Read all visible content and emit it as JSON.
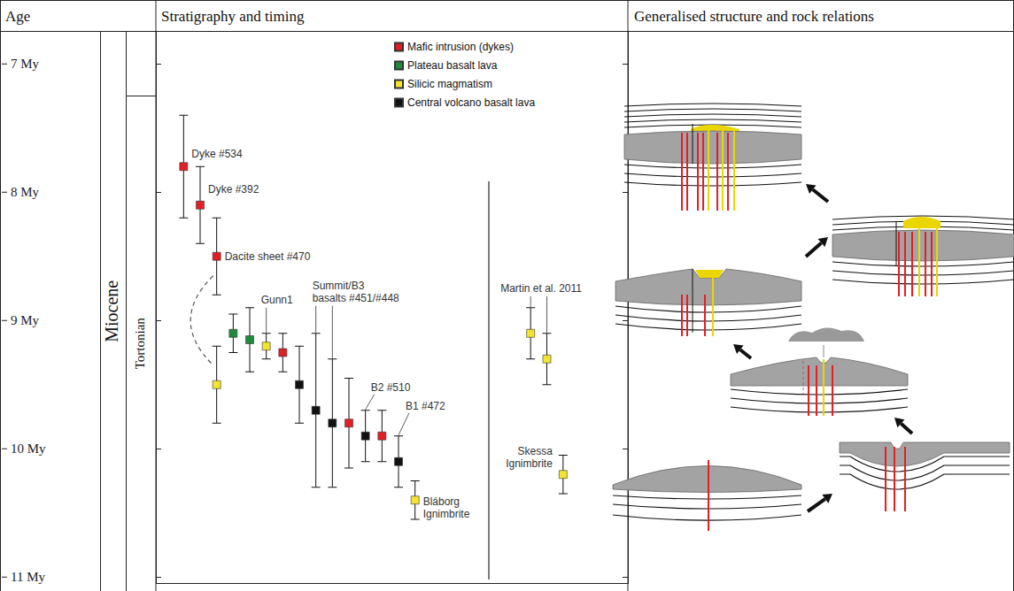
{
  "headers": {
    "age": "Age",
    "stratigraphy": "Stratigraphy and timing",
    "structure": "Generalised structure and rock relations"
  },
  "timescale": {
    "epoch": "Miocene",
    "stage": "Tortonian",
    "stage_top": 7.25
  },
  "chart_data": [
    {
      "type": "scatter",
      "ylim": [
        6.75,
        11.05
      ],
      "yticks": [
        {
          "value": 7,
          "label": "7 My"
        },
        {
          "value": 8,
          "label": "8 My"
        },
        {
          "value": 9,
          "label": "9 My"
        },
        {
          "value": 10,
          "label": "10 My"
        },
        {
          "value": 11,
          "label": "11 My"
        }
      ],
      "tick_labels": "y",
      "grid": false,
      "legend": "upper right",
      "categories": [
        null,
        null,
        null,
        null,
        null,
        null,
        null,
        null,
        null,
        null,
        null,
        null,
        null,
        null,
        null
      ],
      "series": [
        {
          "name": "Mafic intrusion (dykes)",
          "color": "#e31e24",
          "marker": "square",
          "values": [
            7.8,
            8.1,
            8.5,
            null,
            null,
            null,
            9.25,
            null,
            null,
            null,
            9.8,
            null,
            9.9,
            null,
            null
          ],
          "errors": [
            0.4,
            0.3,
            0.3,
            null,
            null,
            null,
            0.15,
            null,
            null,
            null,
            0.35,
            null,
            0.2,
            null,
            null
          ],
          "labels": [
            "Dyke #534",
            "Dyke #392",
            "Dacite sheet #470",
            null,
            null,
            null,
            null,
            null,
            null,
            null,
            null,
            null,
            null,
            null,
            null
          ]
        },
        {
          "name": "Plateau basalt lava",
          "color": "#1f8a3b",
          "marker": "square",
          "values": [
            null,
            null,
            null,
            9.1,
            9.15,
            null,
            null,
            null,
            null,
            null,
            null,
            null,
            null,
            null,
            null
          ],
          "errors": [
            null,
            null,
            null,
            0.15,
            0.25,
            null,
            null,
            null,
            null,
            null,
            null,
            null,
            null,
            null,
            null
          ],
          "labels": [
            null,
            null,
            null,
            null,
            null,
            null,
            null,
            null,
            null,
            null,
            null,
            null,
            null,
            null,
            null
          ]
        },
        {
          "name": "Silicic magmatism",
          "color": "#f5e42f",
          "marker": "square",
          "values": [
            null,
            null,
            9.5,
            null,
            null,
            9.2,
            null,
            null,
            null,
            null,
            null,
            null,
            null,
            null,
            10.4
          ],
          "errors": [
            null,
            null,
            0.3,
            null,
            null,
            0.1,
            null,
            null,
            null,
            null,
            null,
            null,
            null,
            null,
            0.15
          ],
          "labels": [
            null,
            null,
            null,
            null,
            null,
            "Gunn1",
            null,
            null,
            null,
            null,
            null,
            null,
            null,
            null,
            "Bláborg\nIgnimbrite"
          ]
        },
        {
          "name": "Central volcano basalt lava",
          "color": "#111111",
          "marker": "square",
          "values": [
            null,
            null,
            null,
            null,
            null,
            null,
            null,
            9.5,
            9.7,
            9.8,
            null,
            9.9,
            null,
            10.1,
            null
          ],
          "errors": [
            null,
            null,
            null,
            null,
            null,
            null,
            null,
            0.3,
            0.6,
            0.5,
            null,
            0.2,
            null,
            0.2,
            null
          ],
          "labels": [
            null,
            null,
            null,
            null,
            null,
            null,
            null,
            null,
            "Summit/B3\nbasalts #451/#448",
            "Summit/B3\nbasalts #451/#448",
            null,
            "B2 #510",
            null,
            "B1 #472",
            null
          ]
        }
      ],
      "connections": [
        {
          "from": [
            "Mafic intrusion (dykes)",
            2
          ],
          "to": [
            "Silicic magmatism",
            2
          ],
          "line_style": "dashed"
        }
      ]
    },
    {
      "type": "scatter",
      "ylim": [
        6.75,
        11.05
      ],
      "yticks": [
        {
          "value": 7,
          "label": "7 My"
        },
        {
          "value": 8,
          "label": "8 My"
        },
        {
          "value": 9,
          "label": "9 My"
        },
        {
          "value": 10,
          "label": "10 My"
        },
        {
          "value": 11,
          "label": "11 My"
        }
      ],
      "tick_labels": false,
      "grid": false,
      "categories": [
        null,
        null,
        null
      ],
      "series": [
        {
          "name": "Silicic magmatism",
          "color": "#f5e42f",
          "marker": "square",
          "values": [
            9.1,
            9.3,
            10.2
          ],
          "errors": [
            0.2,
            0.2,
            0.15
          ],
          "labels": [
            "Martin et al. 2011",
            "Martin et al. 2011",
            "Skessa\nIgnimbrite"
          ]
        }
      ]
    }
  ]
}
